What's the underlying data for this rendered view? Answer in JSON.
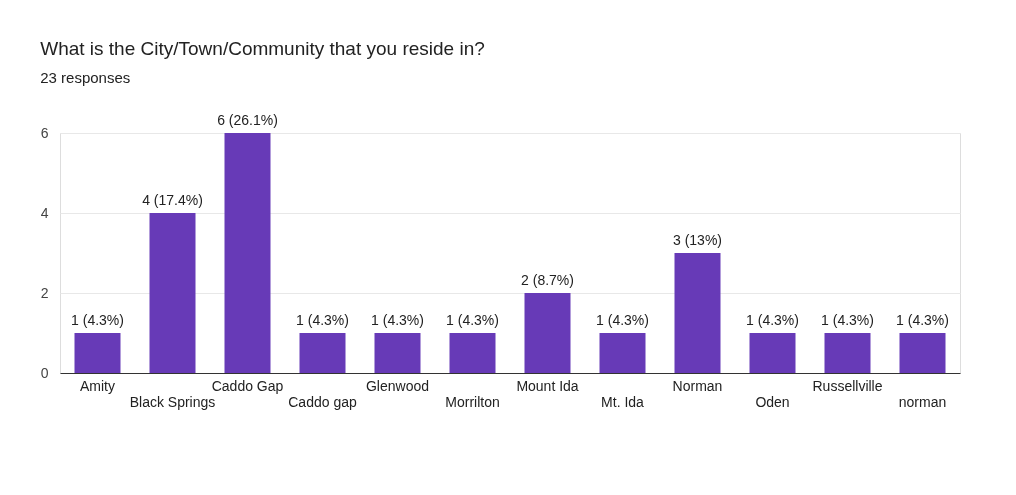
{
  "chart_data": {
    "type": "bar",
    "title": "What is the City/Town/Community that you reside in?",
    "subtitle": "23 responses",
    "categories": [
      "Amity",
      "Black Springs",
      "Caddo Gap",
      "Caddo gap",
      "Glenwood",
      "Morrilton",
      "Mount Ida",
      "Mt. Ida",
      "Norman",
      "Oden",
      "Russellville",
      "norman"
    ],
    "values": [
      1,
      4,
      6,
      1,
      1,
      1,
      2,
      1,
      3,
      1,
      1,
      1
    ],
    "value_labels": [
      "1 (4.3%)",
      "4 (17.4%)",
      "6 (26.1%)",
      "1 (4.3%)",
      "1 (4.3%)",
      "1 (4.3%)",
      "2 (8.7%)",
      "1 (4.3%)",
      "3 (13%)",
      "1 (4.3%)",
      "1 (4.3%)",
      "1 (4.3%)"
    ],
    "color": "#673ab7",
    "ylim": [
      0,
      6
    ],
    "yticks": [
      0,
      2,
      4,
      6
    ],
    "grid": "y"
  }
}
